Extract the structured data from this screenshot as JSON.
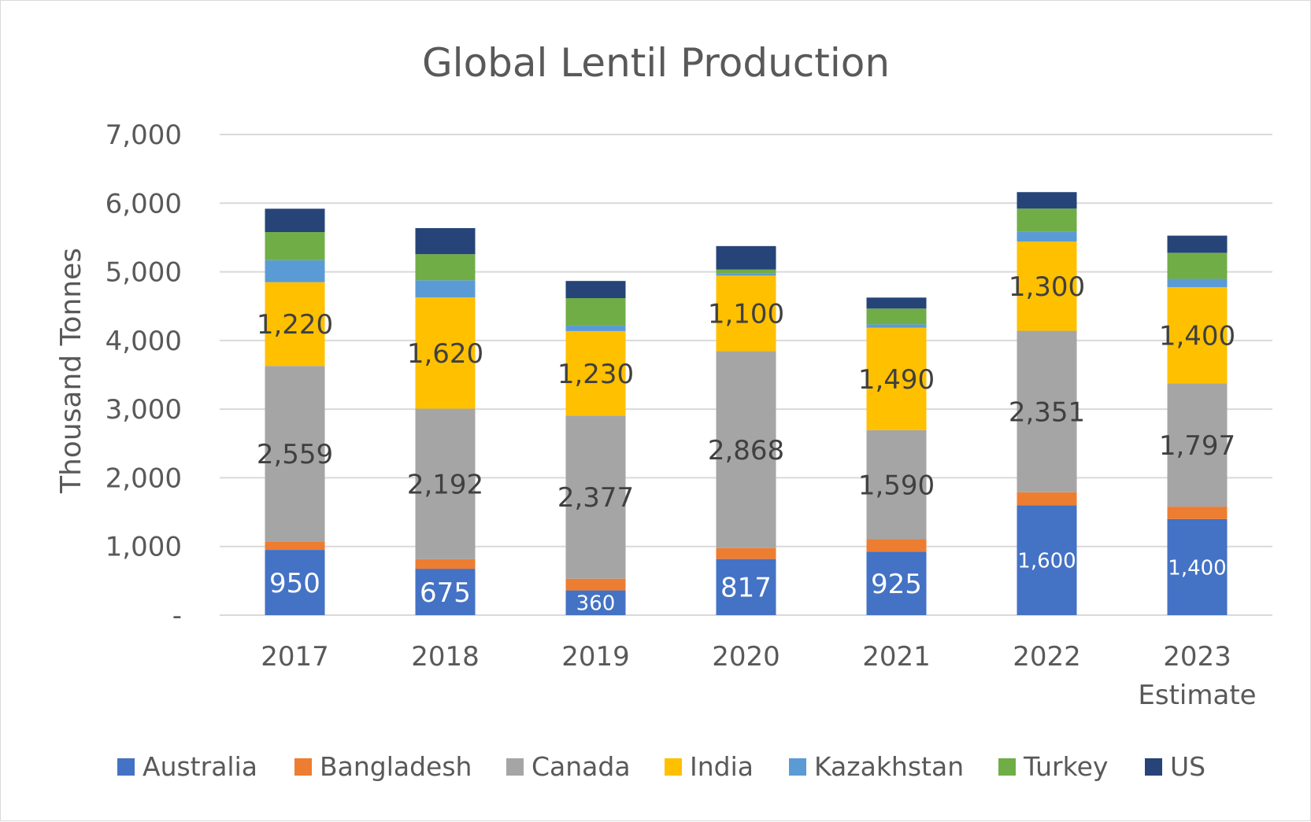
{
  "chart_data": {
    "type": "bar",
    "stacked": true,
    "title": "Global Lentil Production",
    "ylabel": "Thousand Tonnes",
    "xlabel": "",
    "ylim": [
      0,
      7000
    ],
    "yticks": [
      0,
      1000,
      2000,
      3000,
      4000,
      5000,
      6000,
      7000
    ],
    "ytick_labels": [
      "-",
      "1,000",
      "2,000",
      "3,000",
      "4,000",
      "5,000",
      "6,000",
      "7,000"
    ],
    "grid": true,
    "legend": "bottom",
    "categories": [
      [
        "2017"
      ],
      [
        "2018"
      ],
      [
        "2019"
      ],
      [
        "2020"
      ],
      [
        "2021"
      ],
      [
        "2022"
      ],
      [
        "2023",
        "Estimate"
      ]
    ],
    "series": [
      {
        "name": "Australia",
        "color": "#4472C4",
        "values": [
          950,
          675,
          360,
          817,
          925,
          1600,
          1400
        ],
        "labels": [
          "950",
          "675",
          "360",
          "817",
          "925",
          "1,600",
          "1,400"
        ],
        "label_color": "#ffffff"
      },
      {
        "name": "Bangladesh",
        "color": "#ED7D31",
        "values": [
          120,
          140,
          170,
          160,
          180,
          190,
          180
        ],
        "labels": null
      },
      {
        "name": "Canada",
        "color": "#A5A5A5",
        "values": [
          2559,
          2192,
          2377,
          2868,
          1590,
          2351,
          1797
        ],
        "labels": [
          "2,559",
          "2,192",
          "2,377",
          "2,868",
          "1,590",
          "2,351",
          "1,797"
        ],
        "label_color": "#404040"
      },
      {
        "name": "India",
        "color": "#FFC000",
        "values": [
          1220,
          1620,
          1230,
          1100,
          1490,
          1300,
          1400
        ],
        "labels": [
          "1,220",
          "1,620",
          "1,230",
          "1,100",
          "1,490",
          "1,300",
          "1,400"
        ],
        "label_color": "#404040"
      },
      {
        "name": "Kazakhstan",
        "color": "#5B9BD5",
        "values": [
          320,
          250,
          80,
          30,
          50,
          140,
          120
        ],
        "labels": null
      },
      {
        "name": "Turkey",
        "color": "#70AD47",
        "values": [
          410,
          380,
          400,
          60,
          230,
          340,
          380
        ],
        "labels": null
      },
      {
        "name": "US",
        "color": "#264478",
        "values": [
          340,
          380,
          250,
          340,
          160,
          240,
          250
        ],
        "labels": null
      }
    ]
  }
}
